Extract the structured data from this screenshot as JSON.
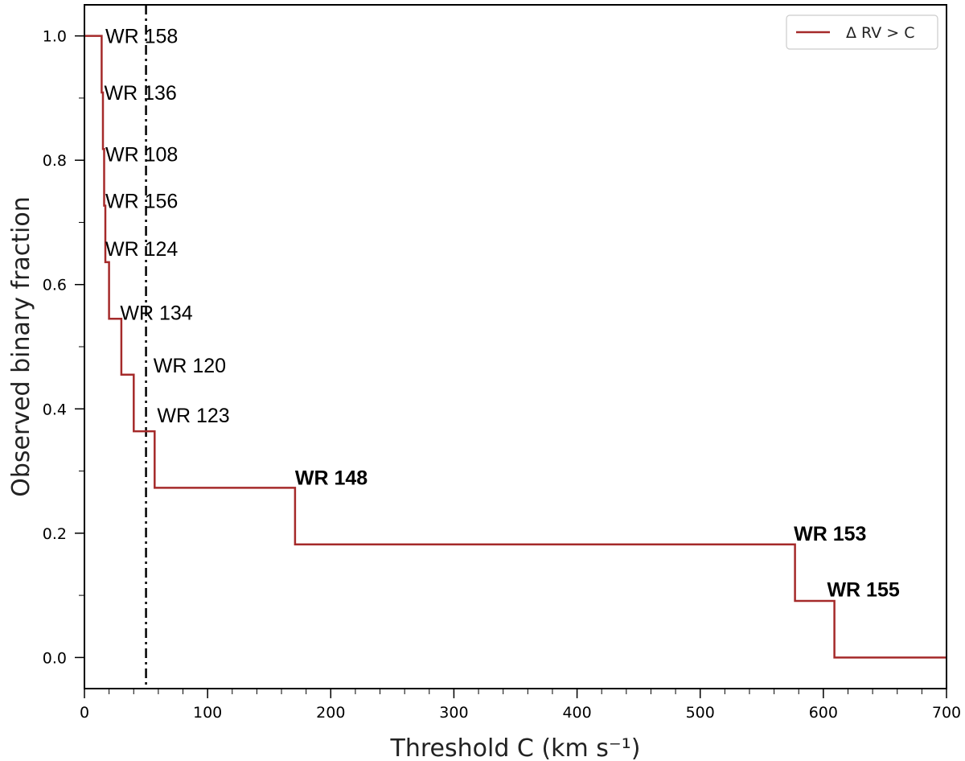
{
  "colors": {
    "series": "#a52a2a",
    "axis": "#000000",
    "legend_border": "#cccccc"
  },
  "chart_data": {
    "type": "line",
    "step": true,
    "xlabel": "Threshold C (km s⁻¹)",
    "ylabel": "Observed binary fraction",
    "xlim": [
      0,
      700
    ],
    "ylim": [
      -0.05,
      1.05
    ],
    "x_ticks": [
      0,
      100,
      200,
      300,
      400,
      500,
      600,
      700
    ],
    "x_tick_labels": [
      "0",
      "100",
      "200",
      "300",
      "400",
      "500",
      "600",
      "700"
    ],
    "y_ticks": [
      0.0,
      0.2,
      0.4,
      0.6,
      0.8,
      1.0
    ],
    "y_tick_labels": [
      "0.0",
      "0.2",
      "0.4",
      "0.6",
      "0.8",
      "1.0"
    ],
    "grid": false,
    "legend": {
      "placement": "top-right"
    },
    "series": [
      {
        "name": "Δ RV > C",
        "color": "#a52a2a",
        "x": [
          0,
          14,
          15,
          16,
          17,
          18,
          20,
          30,
          40,
          57,
          171,
          577,
          609,
          700
        ],
        "y": [
          1.0,
          0.909,
          0.818,
          0.727,
          0.636,
          0.636,
          0.545,
          0.455,
          0.364,
          0.273,
          0.182,
          0.091,
          0.0,
          0.0
        ],
        "step_x": [
          0,
          14,
          14,
          15,
          15,
          16,
          16,
          17,
          17,
          20,
          20,
          30,
          30,
          40,
          40,
          57,
          57,
          171,
          171,
          577,
          577,
          609,
          609,
          700
        ],
        "step_y": [
          1.0,
          1.0,
          0.909,
          0.909,
          0.818,
          0.818,
          0.727,
          0.727,
          0.636,
          0.636,
          0.545,
          0.545,
          0.455,
          0.455,
          0.364,
          0.364,
          0.273,
          0.273,
          0.182,
          0.182,
          0.091,
          0.091,
          0.0,
          0.0
        ]
      }
    ],
    "vline": {
      "x": 50,
      "style": "dashdot",
      "color": "#000000"
    },
    "annotations": [
      {
        "text": "WR 158",
        "x": 17,
        "y": 1.0,
        "bold": false
      },
      {
        "text": "WR 136",
        "x": 16,
        "y": 0.909,
        "bold": false
      },
      {
        "text": "WR 108",
        "x": 17,
        "y": 0.81,
        "bold": false
      },
      {
        "text": "WR 156",
        "x": 17,
        "y": 0.735,
        "bold": false
      },
      {
        "text": "WR 124",
        "x": 17,
        "y": 0.658,
        "bold": false
      },
      {
        "text": "WR 134",
        "x": 29,
        "y": 0.555,
        "bold": false
      },
      {
        "text": "WR 120",
        "x": 56,
        "y": 0.47,
        "bold": false
      },
      {
        "text": "WR 123",
        "x": 59,
        "y": 0.39,
        "bold": false
      },
      {
        "text": "WR 148",
        "x": 171,
        "y": 0.29,
        "bold": true
      },
      {
        "text": "WR 153",
        "x": 576,
        "y": 0.2,
        "bold": true
      },
      {
        "text": "WR 155",
        "x": 603,
        "y": 0.11,
        "bold": true
      }
    ]
  }
}
